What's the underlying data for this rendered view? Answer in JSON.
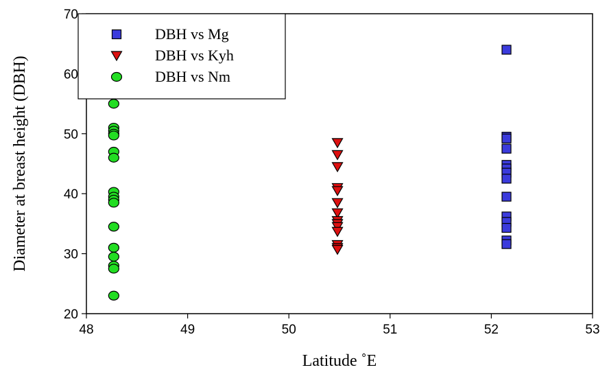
{
  "chart_data": {
    "type": "scatter",
    "title": "",
    "xlabel": "Latitude ˚E",
    "ylabel": "Diameter at breast height (DBH)",
    "xlim": [
      48,
      53
    ],
    "ylim": [
      20,
      70
    ],
    "xticks": [
      48,
      49,
      50,
      51,
      52,
      53
    ],
    "yticks": [
      20,
      30,
      40,
      50,
      60,
      70
    ],
    "grid": false,
    "legend_position": "top-left",
    "series": [
      {
        "name": "DBH vs Mg",
        "marker": "square",
        "color": "#3b3bdc",
        "points": [
          {
            "x": 52.15,
            "y": 64
          },
          {
            "x": 52.15,
            "y": 49.5
          },
          {
            "x": 52.15,
            "y": 49.2
          },
          {
            "x": 52.15,
            "y": 47.5
          },
          {
            "x": 52.15,
            "y": 44.8
          },
          {
            "x": 52.15,
            "y": 44.2
          },
          {
            "x": 52.15,
            "y": 43.5
          },
          {
            "x": 52.15,
            "y": 42.5
          },
          {
            "x": 52.15,
            "y": 39.5
          },
          {
            "x": 52.15,
            "y": 36.2
          },
          {
            "x": 52.15,
            "y": 35.3
          },
          {
            "x": 52.15,
            "y": 34.3
          },
          {
            "x": 52.15,
            "y": 32.2
          },
          {
            "x": 52.15,
            "y": 31.6
          }
        ]
      },
      {
        "name": "DBH vs Kyh",
        "marker": "triangle-down",
        "color": "#dd1111",
        "points": [
          {
            "x": 50.48,
            "y": 48.5
          },
          {
            "x": 50.48,
            "y": 46.5
          },
          {
            "x": 50.48,
            "y": 44.5
          },
          {
            "x": 50.48,
            "y": 41
          },
          {
            "x": 50.48,
            "y": 40.5
          },
          {
            "x": 50.48,
            "y": 38.5
          },
          {
            "x": 50.48,
            "y": 36.8
          },
          {
            "x": 50.48,
            "y": 35.5
          },
          {
            "x": 50.48,
            "y": 35
          },
          {
            "x": 50.48,
            "y": 34.5
          },
          {
            "x": 50.48,
            "y": 33.7
          },
          {
            "x": 50.48,
            "y": 31.5
          },
          {
            "x": 50.48,
            "y": 31
          },
          {
            "x": 50.48,
            "y": 30.7
          }
        ]
      },
      {
        "name": "DBH vs Nm",
        "marker": "circle",
        "color": "#22dd22",
        "points": [
          {
            "x": 48.27,
            "y": 55
          },
          {
            "x": 48.27,
            "y": 51
          },
          {
            "x": 48.27,
            "y": 50.5
          },
          {
            "x": 48.27,
            "y": 50
          },
          {
            "x": 48.27,
            "y": 49.7
          },
          {
            "x": 48.27,
            "y": 47
          },
          {
            "x": 48.27,
            "y": 46
          },
          {
            "x": 48.27,
            "y": 40.3
          },
          {
            "x": 48.27,
            "y": 39.5
          },
          {
            "x": 48.27,
            "y": 39
          },
          {
            "x": 48.27,
            "y": 38.5
          },
          {
            "x": 48.27,
            "y": 34.5
          },
          {
            "x": 48.27,
            "y": 31
          },
          {
            "x": 48.27,
            "y": 29.5
          },
          {
            "x": 48.27,
            "y": 28
          },
          {
            "x": 48.27,
            "y": 27.5
          },
          {
            "x": 48.27,
            "y": 23
          }
        ]
      }
    ]
  }
}
